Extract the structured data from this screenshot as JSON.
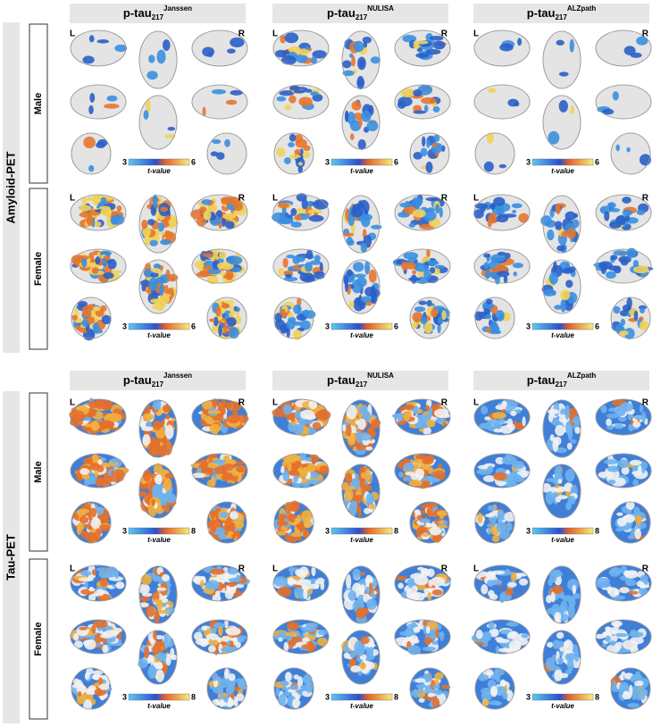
{
  "sections": [
    {
      "label": "Amyloid-PET",
      "columns": [
        {
          "title": "p-tau",
          "subscript": "217",
          "superscript": "Janssen"
        },
        {
          "title": "p-tau",
          "subscript": "217",
          "superscript": "NULISA"
        },
        {
          "title": "p-tau",
          "subscript": "217",
          "superscript": "ALZpath"
        }
      ],
      "rows": [
        {
          "label": "Male",
          "panels": [
            {
              "left": "L",
              "right": "R",
              "colorbar": {
                "min": 3,
                "max": 6,
                "label": "t-value"
              }
            },
            {
              "left": "L",
              "right": "R",
              "colorbar": {
                "min": 3,
                "max": 6,
                "label": "t-value"
              }
            },
            {
              "left": "L",
              "right": "R",
              "colorbar": {
                "min": 3,
                "max": 6,
                "label": "t-value"
              }
            }
          ]
        },
        {
          "label": "Female",
          "panels": [
            {
              "left": "L",
              "right": "R",
              "colorbar": {
                "min": 3,
                "max": 6,
                "label": "t-value"
              }
            },
            {
              "left": "L",
              "right": "R",
              "colorbar": {
                "min": 3,
                "max": 6,
                "label": "t-value"
              }
            },
            {
              "left": "L",
              "right": "R",
              "colorbar": {
                "min": 3,
                "max": 6,
                "label": "t-value"
              }
            }
          ]
        }
      ]
    },
    {
      "label": "Tau-PET",
      "columns": [
        {
          "title": "p-tau",
          "subscript": "217",
          "superscript": "Janssen"
        },
        {
          "title": "p-tau",
          "subscript": "217",
          "superscript": "NULISA"
        },
        {
          "title": "p-tau",
          "subscript": "217",
          "superscript": "ALZpath"
        }
      ],
      "rows": [
        {
          "label": "Male",
          "panels": [
            {
              "left": "L",
              "right": "R",
              "colorbar": {
                "min": 3,
                "max": 8,
                "label": "t-value"
              }
            },
            {
              "left": "L",
              "right": "R",
              "colorbar": {
                "min": 3,
                "max": 8,
                "label": "t-value"
              }
            },
            {
              "left": "L",
              "right": "R",
              "colorbar": {
                "min": 3,
                "max": 8,
                "label": "t-value"
              }
            }
          ]
        },
        {
          "label": "Female",
          "panels": [
            {
              "left": "L",
              "right": "R",
              "colorbar": {
                "min": 3,
                "max": 8,
                "label": "t-value"
              }
            },
            {
              "left": "L",
              "right": "R",
              "colorbar": {
                "min": 3,
                "max": 8,
                "label": "t-value"
              }
            },
            {
              "left": "L",
              "right": "R",
              "colorbar": {
                "min": 3,
                "max": 8,
                "label": "t-value"
              }
            }
          ]
        }
      ]
    }
  ]
}
